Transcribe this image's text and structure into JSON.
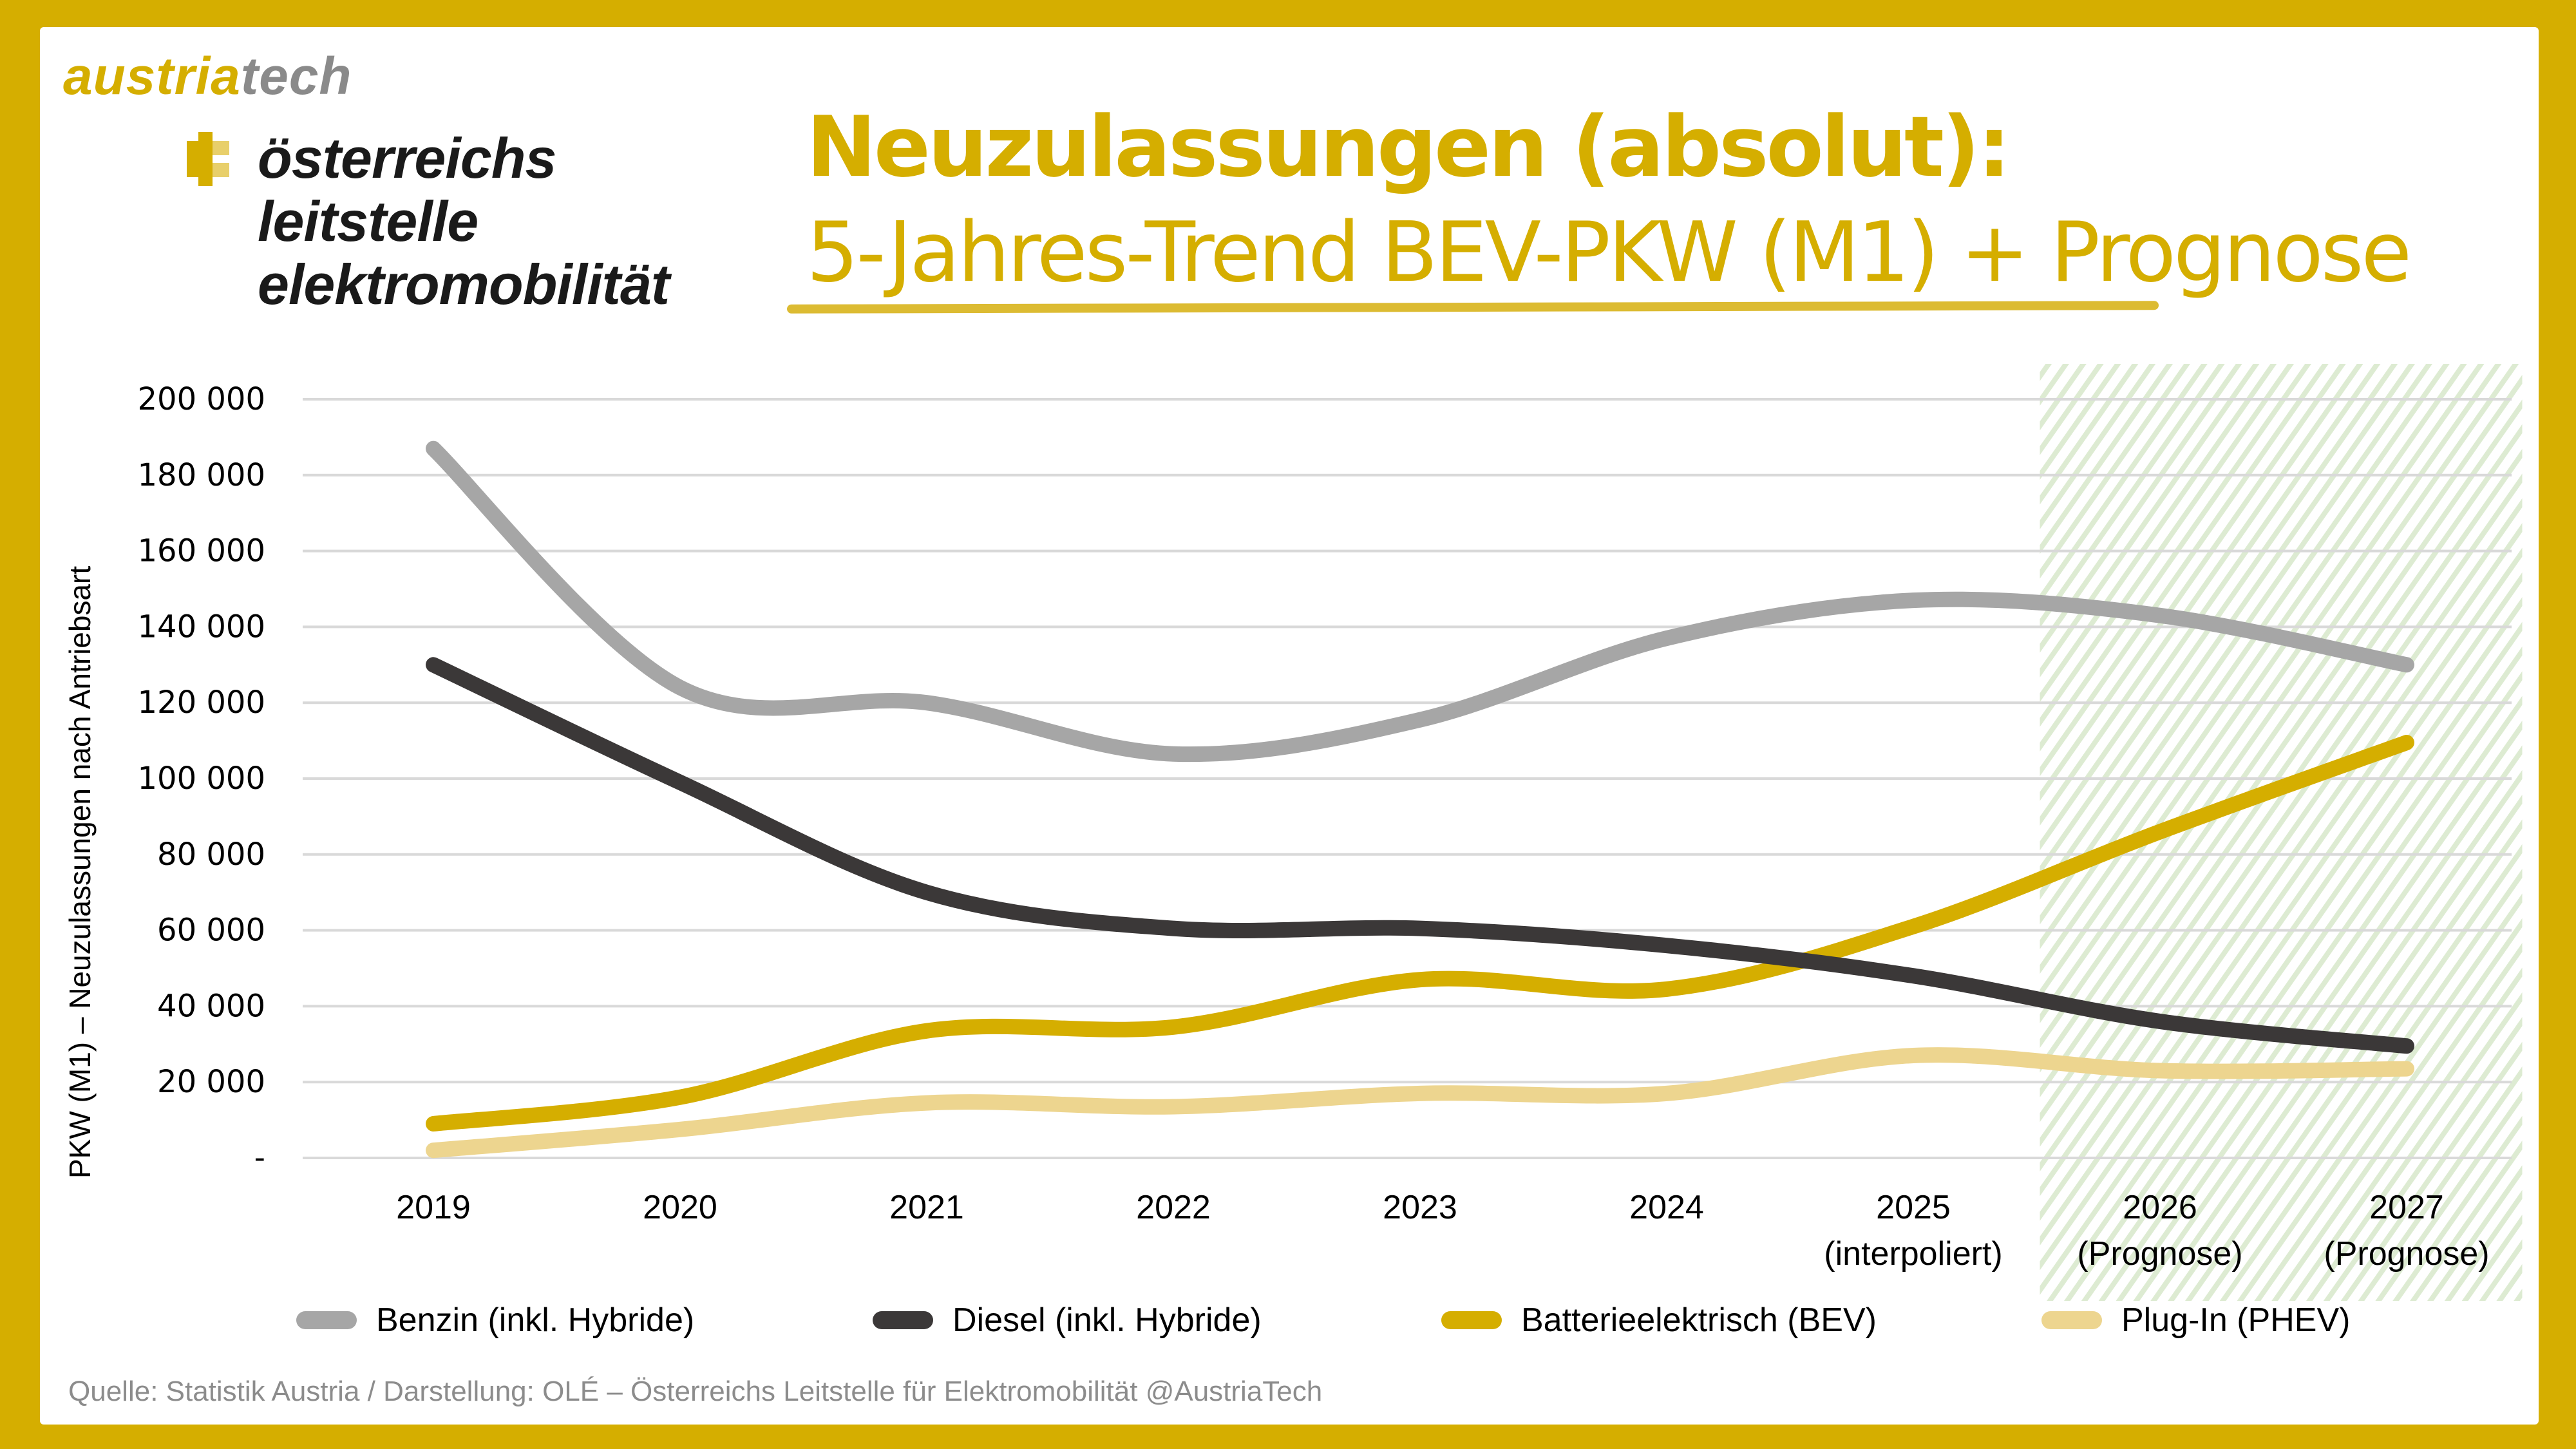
{
  "branding": {
    "austriatech_part1": "austria",
    "austriatech_part2": "tech",
    "ole_lines": [
      "österreichs",
      "leitstelle",
      "elektromobilität"
    ]
  },
  "header": {
    "title": "Neuzulassungen (absolut):",
    "subtitle": "5-Jahres-Trend BEV-PKW (M1) + Prognose"
  },
  "footer": {
    "source": "Quelle: Statistik Austria / Darstellung: OLÉ – Österreichs Leitstelle für Elektromobilität @AustriaTech"
  },
  "colors": {
    "brand": "#D5AE00",
    "benzin": "#A6A6A6",
    "diesel": "#3B3838",
    "bev": "#D5AE00",
    "phev": "#EDD58F",
    "forecast_hatch": "#DDEBD2",
    "grid": "#D9D9D9"
  },
  "chart_data": {
    "type": "line",
    "title": "Neuzulassungen (absolut): 5-Jahres-Trend BEV-PKW (M1) + Prognose",
    "xlabel": "",
    "ylabel": "PKW (M1) – Neuzulassungen nach Antriebsart",
    "categories": [
      [
        "2019"
      ],
      [
        "2020"
      ],
      [
        "2021"
      ],
      [
        "2022"
      ],
      [
        "2023"
      ],
      [
        "2024"
      ],
      [
        "2025",
        "(interpoliert)"
      ],
      [
        "2026",
        "(Prognose)"
      ],
      [
        "2027",
        "(Prognose)"
      ]
    ],
    "ylim": [
      0,
      200000
    ],
    "yticks": [
      0,
      20000,
      40000,
      60000,
      80000,
      100000,
      120000,
      140000,
      160000,
      180000,
      200000
    ],
    "ytick_labels": [
      "-",
      "20 000",
      "40 000",
      "60 000",
      "80 000",
      "100 000",
      "120 000",
      "140 000",
      "160 000",
      "180 000",
      "200 000"
    ],
    "grid": true,
    "smooth": true,
    "forecast_region": {
      "from_index": 7,
      "to_index": 8,
      "label": "Prognose"
    },
    "legend_position": "bottom",
    "series": [
      {
        "name": "Benzin (inkl. Hybride)",
        "color": "#A6A6A6",
        "values": [
          187000,
          124000,
          120000,
          106500,
          115500,
          137000,
          147000,
          143000,
          130000
        ]
      },
      {
        "name": "Diesel (inkl. Hybride)",
        "color": "#3B3838",
        "values": [
          130000,
          99000,
          70000,
          60500,
          60500,
          56000,
          48000,
          36000,
          29500
        ]
      },
      {
        "name": "Batterieelektrisch (BEV)",
        "color": "#D5AE00",
        "values": [
          9000,
          16000,
          33500,
          34500,
          47000,
          44500,
          61000,
          86000,
          109500
        ]
      },
      {
        "name": "Plug-In (PHEV)",
        "color": "#EDD58F",
        "values": [
          2000,
          7500,
          14500,
          13500,
          17000,
          17000,
          27000,
          23000,
          23500
        ]
      }
    ]
  }
}
